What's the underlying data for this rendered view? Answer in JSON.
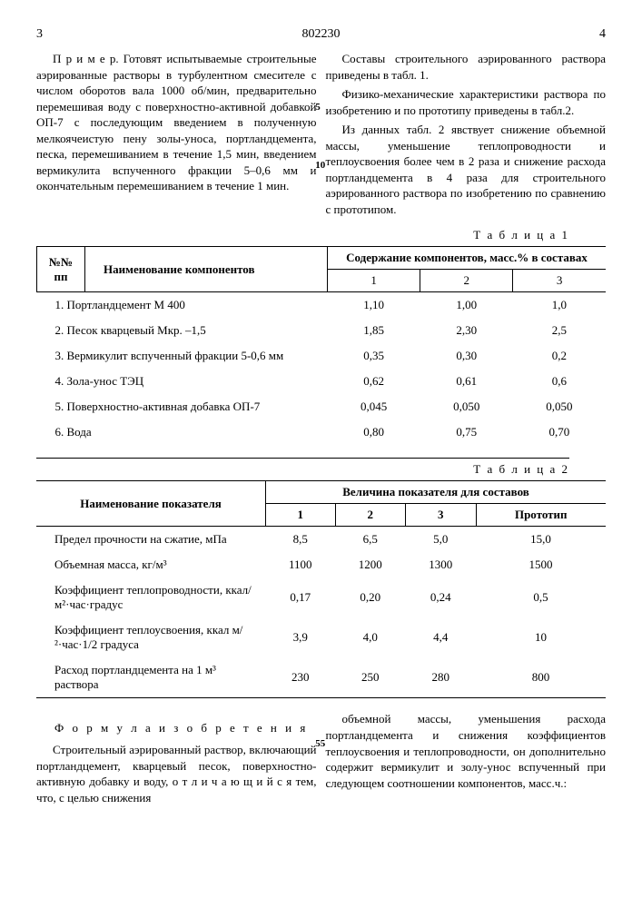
{
  "header": {
    "left_page": "3",
    "right_page": "4",
    "doc_number": "802230"
  },
  "margin_nums": [
    "5",
    "10",
    "55"
  ],
  "intro": {
    "left_paras": [
      "П р и м е р. Готовят испытываемые строительные аэрированные растворы в турбулентном смесителе с числом оборотов вала 1000 об/мин, предварительно перемешивая воду с поверхностно-активной добавкой ОП-7 с последующим введением в полученную мелкоячеистую пену золы-уноса, портландцемента, песка, перемешиванием в течение 1,5 мин, введением вермикулита вспученного фракции 5–0,6 мм и окончательным перемешиванием в течение 1 мин."
    ],
    "right_paras": [
      "Составы строительного аэрированного раствора приведены в табл. 1.",
      "Физико-механические характеристики раствора по изобретению и по прототипу приведены в табл.2.",
      "Из данных табл. 2 явствует снижение объемной массы, уменьшение теплопроводности и теплоусвоения более чем в 2 раза и снижение расхода портландцемента в 4 раза для строительного аэрированного раствора по изобретению по сравнению с прототипом."
    ]
  },
  "table1": {
    "label": "Т а б л и ц а  1",
    "hdr_num": "№№ пп",
    "hdr_name": "Наименование компонентов",
    "hdr_content": "Содержание компонентов, масс.% в составах",
    "sub": [
      "1",
      "2",
      "3"
    ],
    "rows": [
      {
        "name": "1. Портландцемент М 400",
        "v": [
          "1,10",
          "1,00",
          "1,0"
        ]
      },
      {
        "name": "2. Песок кварцевый Mкр. –1,5",
        "v": [
          "1,85",
          "2,30",
          "2,5"
        ]
      },
      {
        "name": "3. Вермикулит вспученный фракции 5-0,6 мм",
        "v": [
          "0,35",
          "0,30",
          "0,2"
        ]
      },
      {
        "name": "4. Зола-унос ТЭЦ",
        "v": [
          "0,62",
          "0,61",
          "0,6"
        ]
      },
      {
        "name": "5. Поверхностно-активная добавка ОП-7",
        "v": [
          "0,045",
          "0,050",
          "0,050"
        ]
      },
      {
        "name": "6. Вода",
        "v": [
          "0,80",
          "0,75",
          "0,70"
        ]
      }
    ]
  },
  "table2": {
    "label": "Т а б л и ц а  2",
    "hdr_name": "Наименование показателя",
    "hdr_content": "Величина показателя для составов",
    "sub": [
      "1",
      "2",
      "3",
      "Прототип"
    ],
    "rows": [
      {
        "name": "Предел прочности на сжатие, мПа",
        "v": [
          "8,5",
          "6,5",
          "5,0",
          "15,0"
        ]
      },
      {
        "name": "Объемная масса, кг/м³",
        "v": [
          "1100",
          "1200",
          "1300",
          "1500"
        ]
      },
      {
        "name": "Коэффициент теплопроводности, ккал/м²·час·градус",
        "v": [
          "0,17",
          "0,20",
          "0,24",
          "0,5"
        ]
      },
      {
        "name": "Коэффициент теплоусвоения, ккал м/²·час·1/2 градуса",
        "v": [
          "3,9",
          "4,0",
          "4,4",
          "10"
        ]
      },
      {
        "name": "Расход портландцемента на 1 м³ раствора",
        "v": [
          "230",
          "250",
          "280",
          "800"
        ]
      }
    ]
  },
  "formula": {
    "title": "Ф о р м у л а   и з о б р е т е н и я",
    "left": [
      "Строительный аэрированный раствор, включающий портландцемент, кварцевый песок, поверхностно-активную добавку и воду, о т л и ч а ю щ и й с я   тем, что, с целью снижения"
    ],
    "right": [
      "объемной массы, уменьшения расхода портландцемента и снижения коэффициентов теплоусвоения и теплопроводности, он дополнительно содержит вермикулит и золу-унос вспученный при следующем соотношении компонентов, масс.ч.:"
    ]
  }
}
